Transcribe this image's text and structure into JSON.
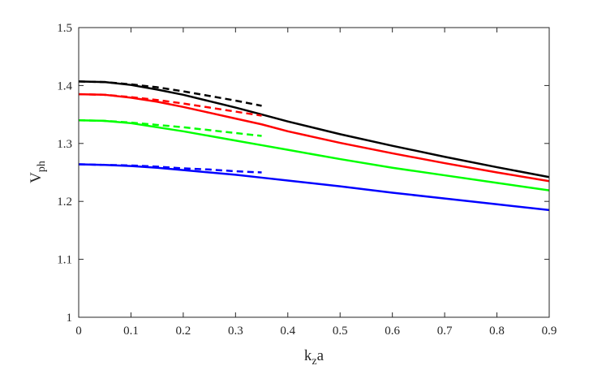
{
  "chart_data": {
    "type": "line",
    "title": "",
    "xlabel": {
      "main": "k",
      "sub": "z",
      "tail": "a"
    },
    "ylabel": {
      "main": "V",
      "sub": "ph"
    },
    "xlim": [
      0,
      0.9
    ],
    "ylim": [
      1,
      1.5
    ],
    "x_ticks": [
      0,
      0.1,
      0.2,
      0.3,
      0.4,
      0.5,
      0.6,
      0.7,
      0.8,
      0.9
    ],
    "x_tick_labels": [
      "0",
      "0.1",
      "0.2",
      "0.3",
      "0.4",
      "0.5",
      "0.6",
      "0.7",
      "0.8",
      "0.9"
    ],
    "y_ticks": [
      1,
      1.1,
      1.2,
      1.3,
      1.4,
      1.5
    ],
    "y_tick_labels": [
      "1",
      "1.1",
      "1.2",
      "1.3",
      "1.4",
      "1.5"
    ],
    "grid": false,
    "legend": "none",
    "series": [
      {
        "color": "#000000",
        "style": "solid",
        "x": [
          0,
          0.05,
          0.1,
          0.15,
          0.2,
          0.25,
          0.3,
          0.35,
          0.4,
          0.5,
          0.6,
          0.7,
          0.8,
          0.9
        ],
        "y": [
          1.407,
          1.406,
          1.401,
          1.393,
          1.384,
          1.373,
          1.362,
          1.35,
          1.338,
          1.316,
          1.296,
          1.277,
          1.259,
          1.242
        ]
      },
      {
        "color": "#000000",
        "style": "dashed",
        "x": [
          0,
          0.05,
          0.1,
          0.15,
          0.2,
          0.25,
          0.3,
          0.35
        ],
        "y": [
          1.407,
          1.406,
          1.402,
          1.397,
          1.39,
          1.382,
          1.374,
          1.365
        ]
      },
      {
        "color": "#ff0000",
        "style": "solid",
        "x": [
          0,
          0.05,
          0.1,
          0.15,
          0.2,
          0.25,
          0.3,
          0.35,
          0.4,
          0.5,
          0.6,
          0.7,
          0.8,
          0.9
        ],
        "y": [
          1.385,
          1.384,
          1.379,
          1.372,
          1.363,
          1.353,
          1.343,
          1.333,
          1.321,
          1.301,
          1.283,
          1.266,
          1.25,
          1.235
        ]
      },
      {
        "color": "#ff0000",
        "style": "dashed",
        "x": [
          0,
          0.05,
          0.1,
          0.15,
          0.2,
          0.25,
          0.3,
          0.35
        ],
        "y": [
          1.385,
          1.384,
          1.38,
          1.375,
          1.369,
          1.362,
          1.355,
          1.348
        ]
      },
      {
        "color": "#00ff00",
        "style": "solid",
        "x": [
          0,
          0.05,
          0.1,
          0.15,
          0.2,
          0.25,
          0.3,
          0.35,
          0.4,
          0.5,
          0.6,
          0.7,
          0.8,
          0.9
        ],
        "y": [
          1.34,
          1.339,
          1.335,
          1.328,
          1.321,
          1.313,
          1.305,
          1.297,
          1.289,
          1.273,
          1.258,
          1.245,
          1.232,
          1.219
        ]
      },
      {
        "color": "#00ff00",
        "style": "dashed",
        "x": [
          0,
          0.05,
          0.1,
          0.15,
          0.2,
          0.25,
          0.3,
          0.35
        ],
        "y": [
          1.34,
          1.339,
          1.336,
          1.332,
          1.328,
          1.323,
          1.318,
          1.313
        ]
      },
      {
        "color": "#0000ff",
        "style": "solid",
        "x": [
          0,
          0.05,
          0.1,
          0.15,
          0.2,
          0.25,
          0.3,
          0.35,
          0.4,
          0.5,
          0.6,
          0.7,
          0.8,
          0.9
        ],
        "y": [
          1.264,
          1.263,
          1.261,
          1.258,
          1.254,
          1.25,
          1.246,
          1.241,
          1.236,
          1.226,
          1.215,
          1.205,
          1.195,
          1.185
        ]
      },
      {
        "color": "#0000ff",
        "style": "dashed",
        "x": [
          0,
          0.05,
          0.1,
          0.15,
          0.2,
          0.25,
          0.3,
          0.35
        ],
        "y": [
          1.264,
          1.263,
          1.262,
          1.26,
          1.257,
          1.255,
          1.252,
          1.25
        ]
      }
    ]
  }
}
